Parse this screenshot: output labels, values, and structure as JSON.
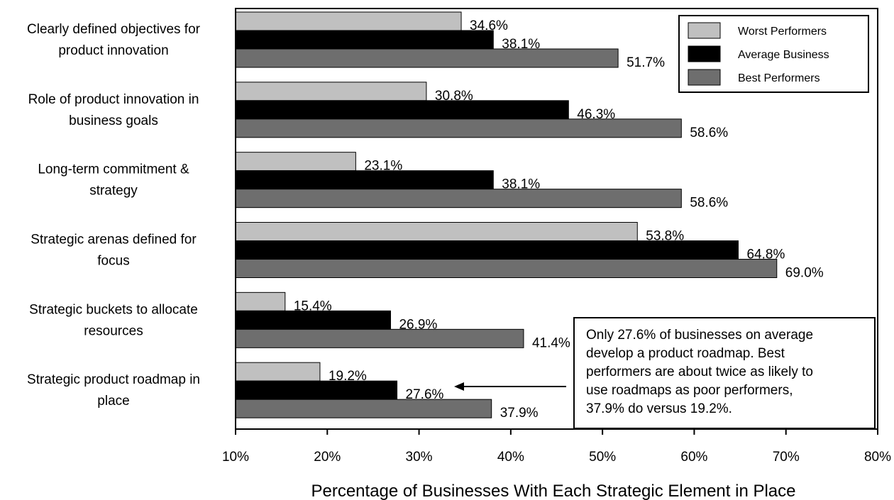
{
  "chart_data": {
    "type": "bar",
    "orientation": "horizontal",
    "categories": [
      [
        "Clearly defined objectives for",
        "product innovation"
      ],
      [
        "Role of product innovation in",
        "business goals"
      ],
      [
        "Long-term commitment &",
        "strategy"
      ],
      [
        "Strategic arenas defined for",
        "focus"
      ],
      [
        "Strategic buckets to allocate",
        "resources"
      ],
      [
        "Strategic product roadmap in",
        "place"
      ]
    ],
    "series": [
      {
        "name": "Worst Performers",
        "color": "#c0c0c0",
        "values": [
          34.6,
          30.8,
          23.1,
          53.8,
          15.4,
          19.2
        ],
        "labels": [
          "34.6%",
          "30.8%",
          "23.1%",
          "53.8%",
          "15.4%",
          "19.2%"
        ]
      },
      {
        "name": "Average Business",
        "color": "#000000",
        "values": [
          38.1,
          46.3,
          38.1,
          64.8,
          26.9,
          27.6
        ],
        "labels": [
          "38.1%",
          "46.3%",
          "38.1%",
          "64.8%",
          "26.9%",
          "27.6%"
        ]
      },
      {
        "name": "Best Performers",
        "color": "#6e6e6e",
        "values": [
          51.7,
          58.6,
          58.6,
          69.0,
          41.4,
          37.9
        ],
        "labels": [
          "51.7%",
          "58.6%",
          "58.6%",
          "69.0%",
          "41.4%",
          "37.9%"
        ]
      }
    ],
    "xlim": [
      10,
      80
    ],
    "xticks": [
      10,
      20,
      30,
      40,
      50,
      60,
      70,
      80
    ],
    "xtick_labels": [
      "10%",
      "20%",
      "30%",
      "40%",
      "50%",
      "60%",
      "70%",
      "80%"
    ],
    "xlabel": "Percentage of Businesses With Each Strategic Element in Place",
    "ylabel": "",
    "title": "",
    "grid": false,
    "legend_position": "top-right",
    "annotation": {
      "lines": [
        "Only 27.6% of businesses on average",
        "develop a product roadmap. Best",
        "performers are about twice as likely to",
        "use roadmaps as poor performers,",
        "37.9% do versus 19.2%."
      ],
      "points_to": "Strategic product roadmap in place / Average Business"
    }
  }
}
